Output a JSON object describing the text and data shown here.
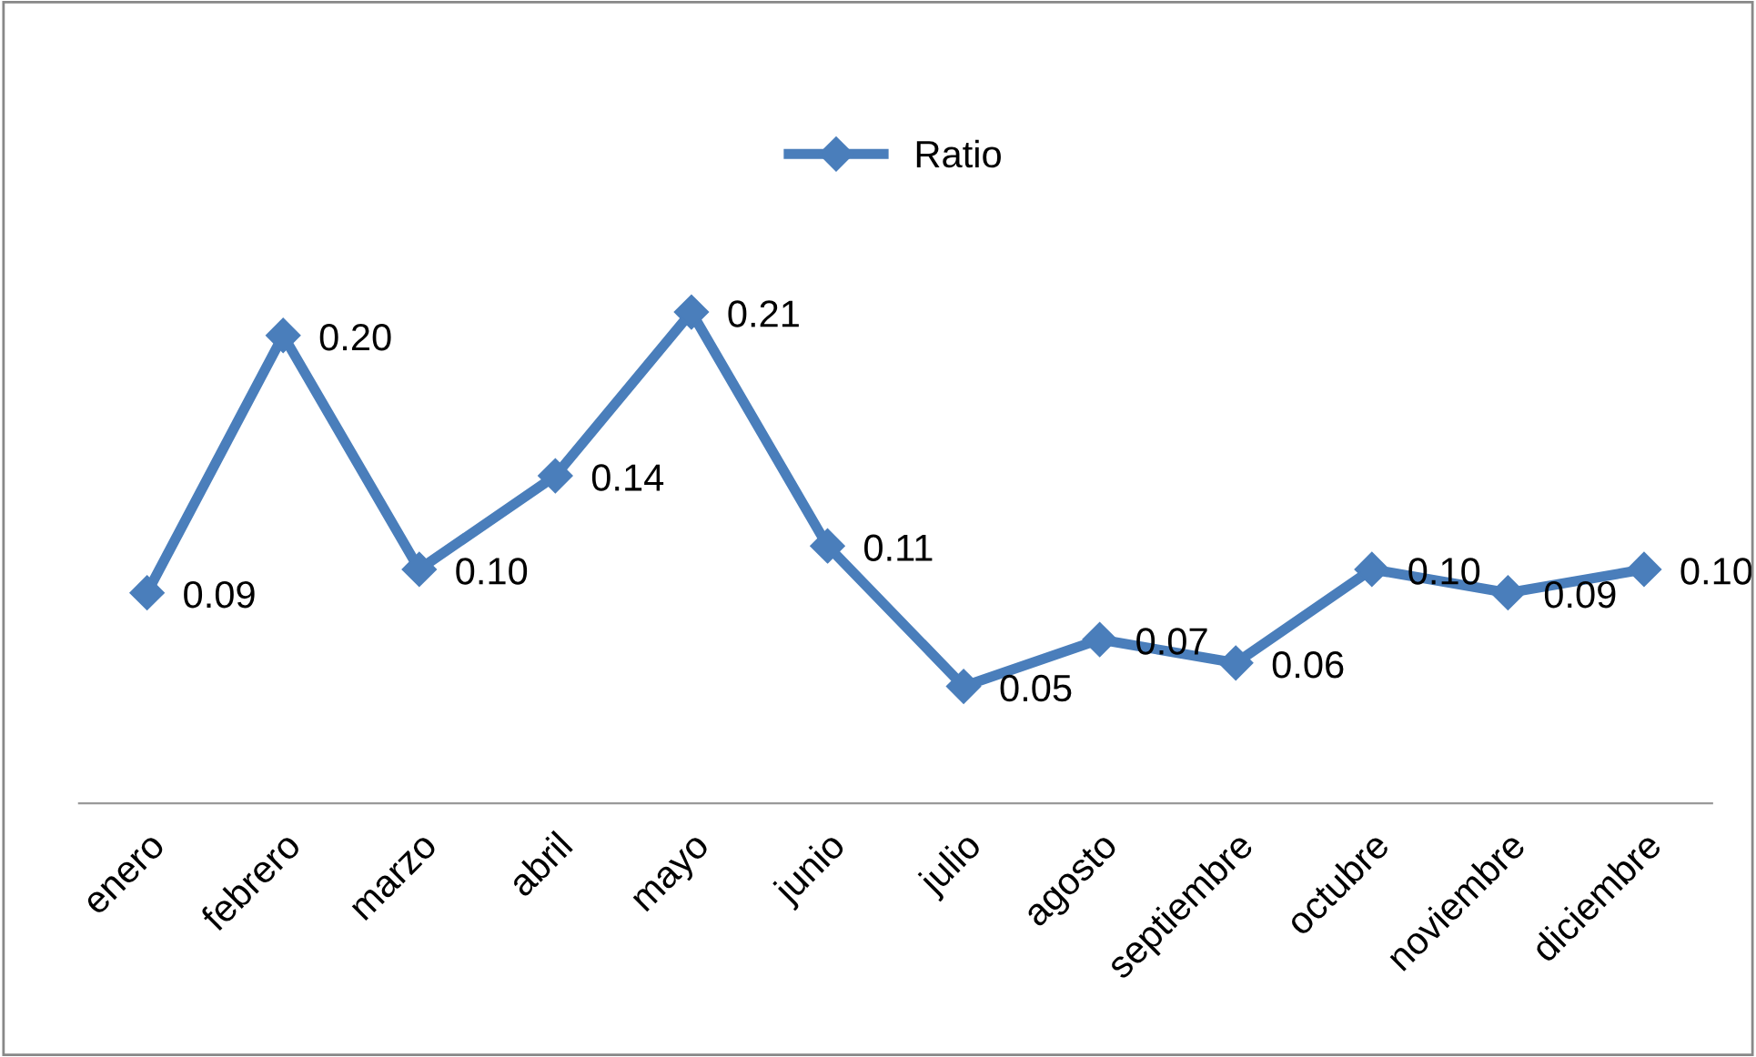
{
  "chart_data": {
    "type": "line",
    "categories": [
      "enero",
      "febrero",
      "marzo",
      "abril",
      "mayo",
      "junio",
      "julio",
      "agosto",
      "septiembre",
      "octubre",
      "noviembre",
      "diciembre"
    ],
    "series": [
      {
        "name": "Ratio",
        "color": "#4a7ebb",
        "values": [
          0.09,
          0.2,
          0.1,
          0.14,
          0.21,
          0.11,
          0.05,
          0.07,
          0.06,
          0.1,
          0.09,
          0.1
        ],
        "value_labels": [
          "0.09",
          "0.20",
          "0.10",
          "0.14",
          "0.21",
          "0.11",
          "0.05",
          "0.07",
          "0.06",
          "0.10",
          "0.09",
          "0.10"
        ]
      }
    ],
    "legend": "top",
    "marker": "diamond",
    "line_style": "solid",
    "grid": false
  }
}
